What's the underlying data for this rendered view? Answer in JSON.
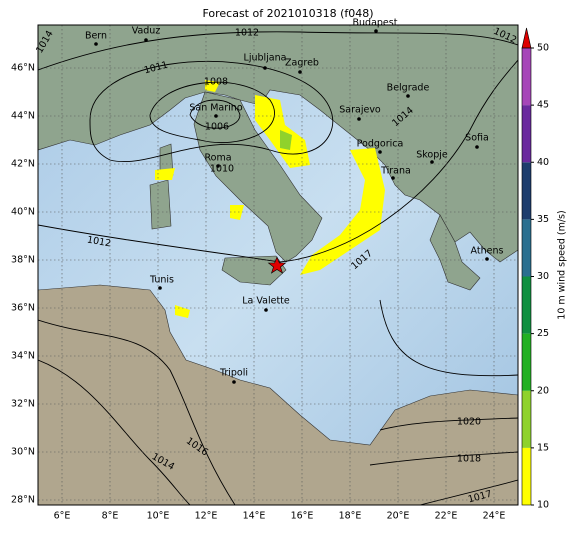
{
  "title": "Forecast of 2021010318 (f048)",
  "map": {
    "lon_ticks": [
      "6°E",
      "8°E",
      "10°E",
      "12°E",
      "14°E",
      "16°E",
      "18°E",
      "20°E",
      "22°E",
      "24°E"
    ],
    "lat_ticks": [
      "28°N",
      "30°N",
      "32°N",
      "34°N",
      "36°N",
      "38°N",
      "40°N",
      "42°N",
      "44°N",
      "46°N"
    ]
  },
  "cities": [
    "Bern",
    "Vaduz",
    "Budapest",
    "Ljubljana",
    "Zagreb",
    "Belgrade",
    "Sarajevo",
    "San Marino",
    "Podgorica",
    "Sofia",
    "Skopje",
    "Tirana",
    "Roma",
    "Tunis",
    "Athens",
    "La Valette",
    "Tripoli"
  ],
  "contour_labels": [
    "1012",
    "1011",
    "1008",
    "1006",
    "1010",
    "1014",
    "1012",
    "1017",
    "1020",
    "1018",
    "1016",
    "1014",
    "1017",
    "1012",
    "1014"
  ],
  "colorbar": {
    "label": "10 m wind speed (m/s)",
    "ticks": [
      10,
      15,
      20,
      25,
      30,
      35,
      40,
      45,
      50
    ],
    "colors": [
      "#ffff00",
      "#8fd22c",
      "#22b022",
      "#109040",
      "#2a6f8f",
      "#1d3d6d",
      "#6a2a9e",
      "#a646b8"
    ],
    "extend_color": "#dd0000"
  }
}
